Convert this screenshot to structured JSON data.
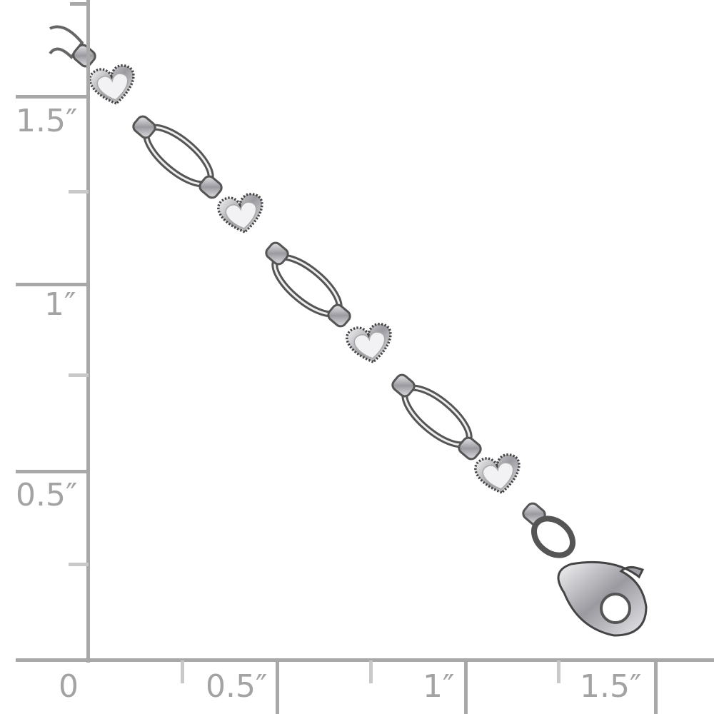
{
  "ruler": {
    "color": "#a8a8a8",
    "vertical_labels": [
      "1.5″",
      "1″",
      "0.5″"
    ],
    "horizontal_labels": [
      "0",
      "0.5″",
      "1″",
      "1.5″"
    ]
  },
  "product": {
    "subject": "bracelet",
    "metal_color": "#c8c8cc"
  }
}
